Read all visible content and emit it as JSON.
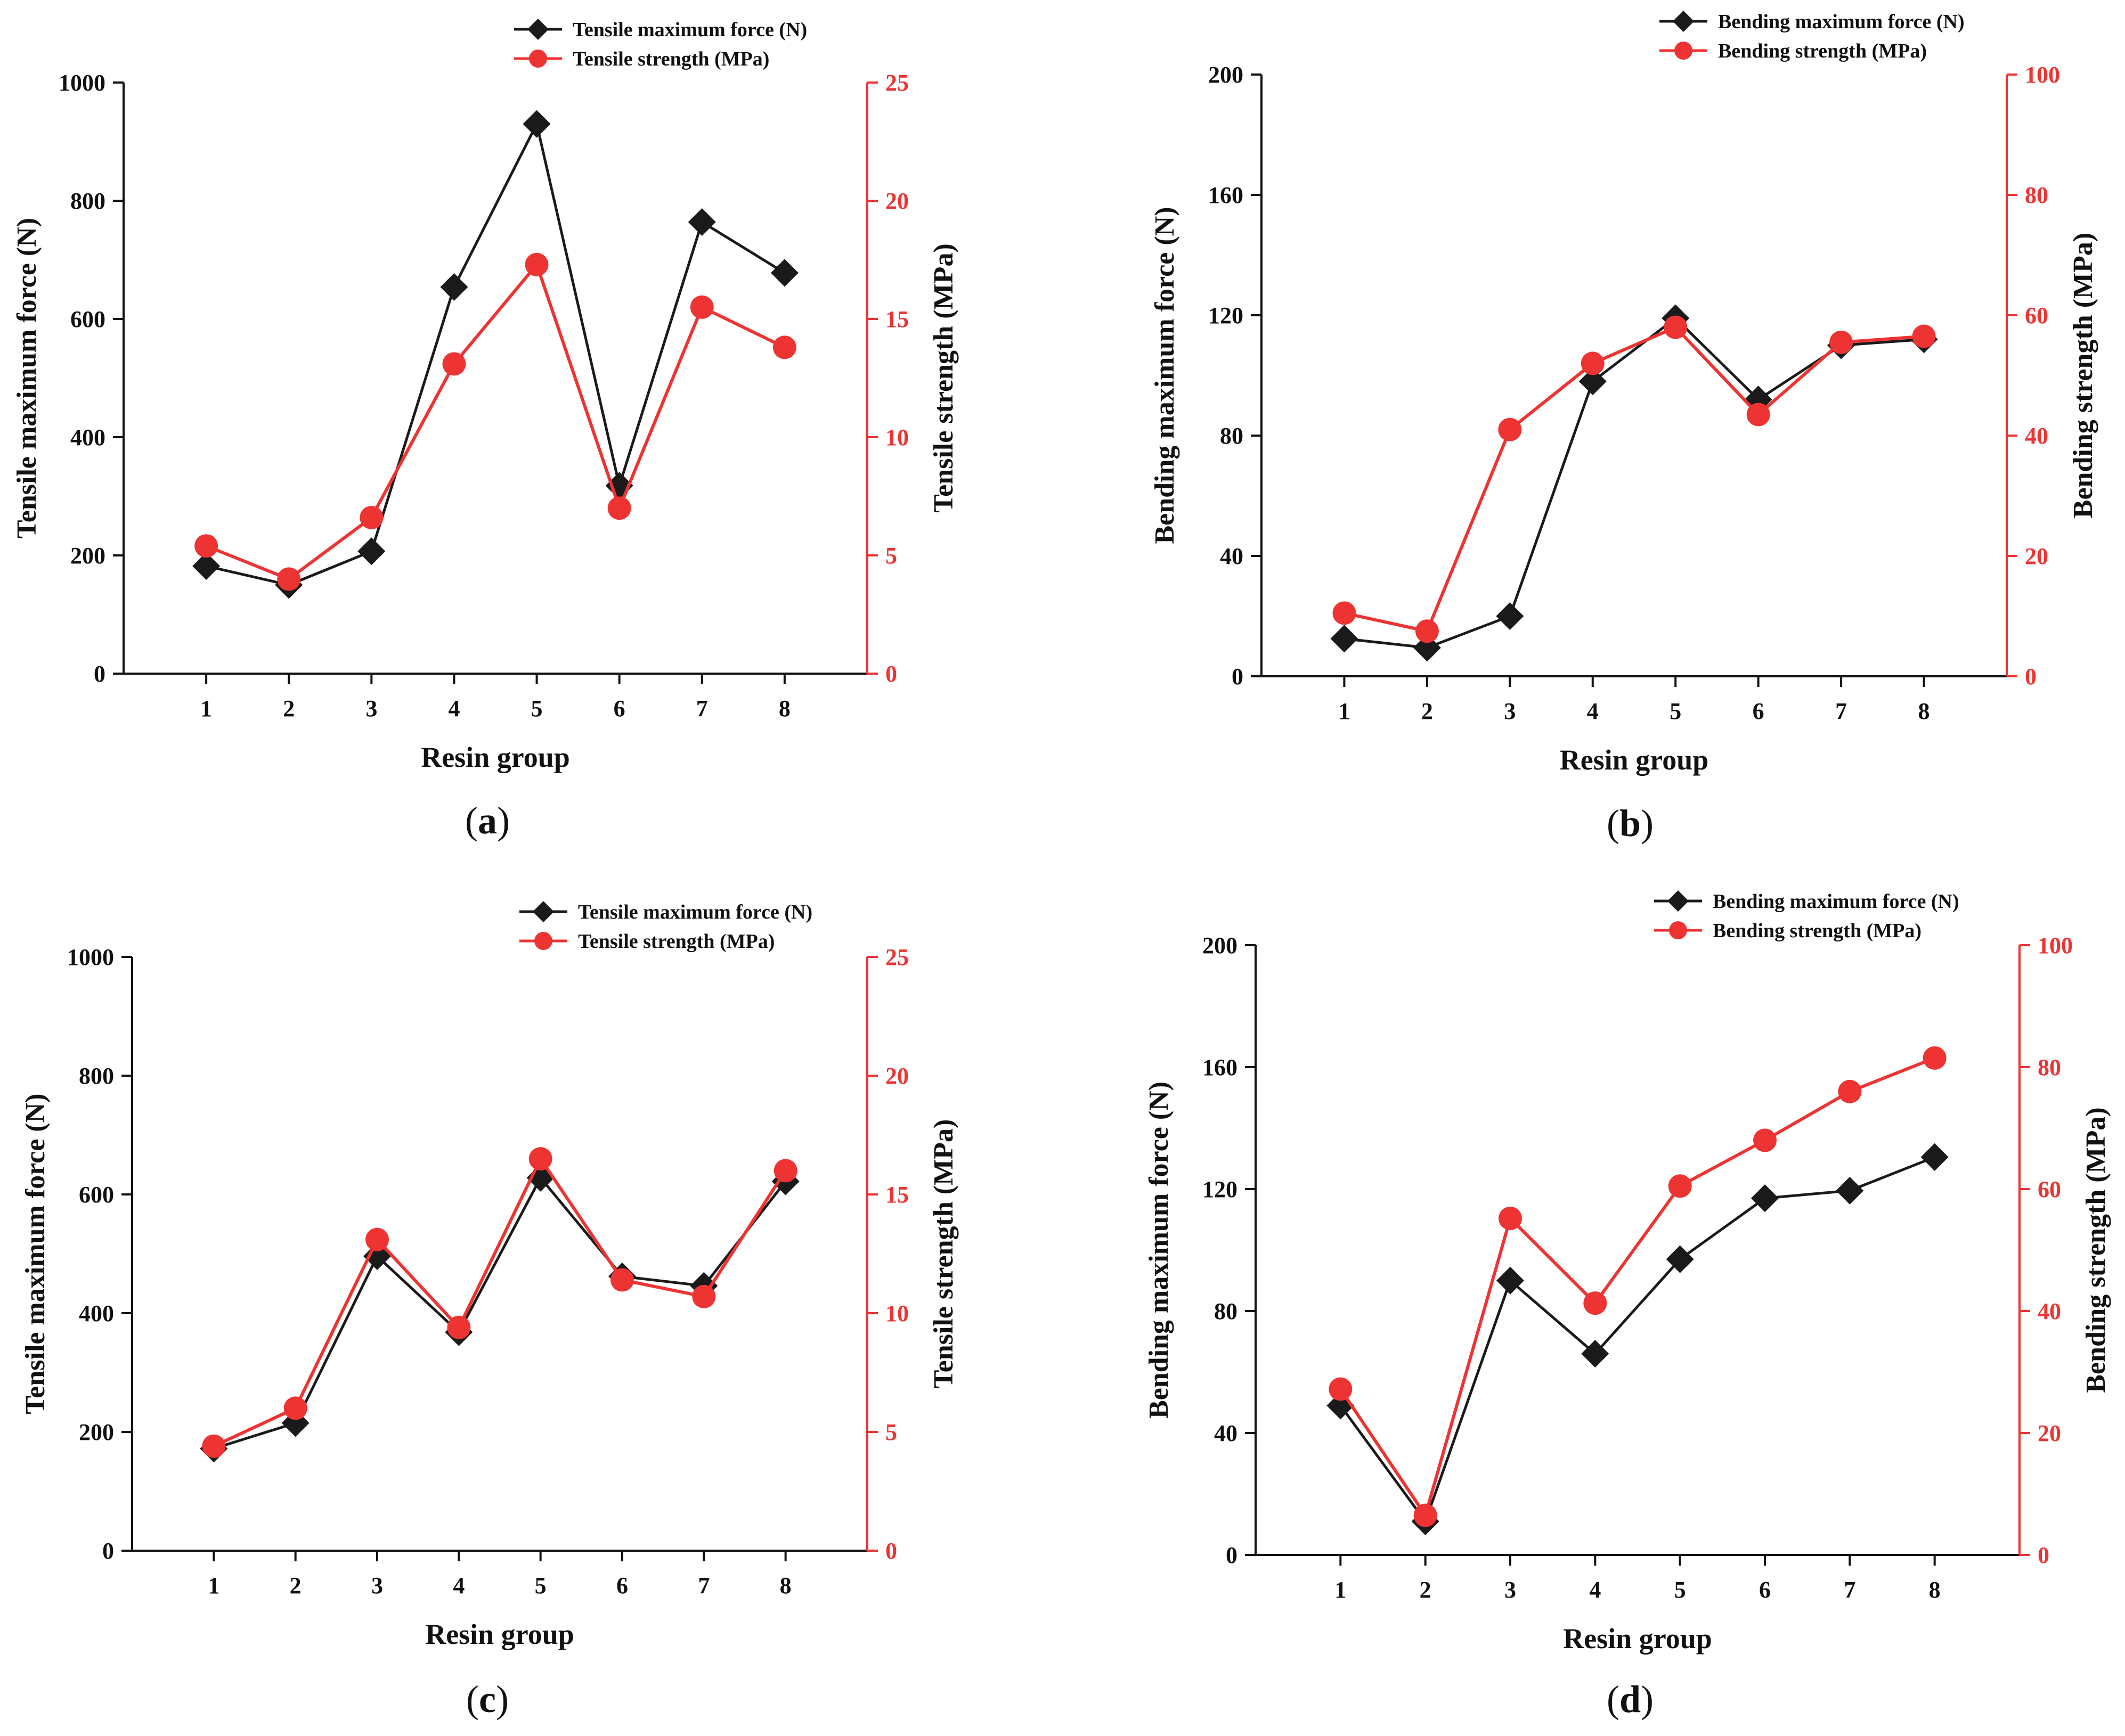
{
  "figure": {
    "colors": {
      "black_series": "#1a1a1a",
      "red_series": "#ee3333",
      "axis_black": "#111111",
      "axis_red": "#ee3333"
    }
  },
  "chart_data": [
    {
      "id": "a",
      "panel_label": "a",
      "type": "line",
      "title": "",
      "xlabel": "Resin group",
      "categories": [
        "1",
        "2",
        "3",
        "4",
        "5",
        "6",
        "7",
        "8"
      ],
      "xlim": [
        0,
        9
      ],
      "y_left": {
        "label": "Tensile maximum force (N)",
        "lim": [
          0,
          1000
        ],
        "ticks": [
          "0",
          "200",
          "400",
          "600",
          "800",
          "1000"
        ]
      },
      "y_right": {
        "label": "Tensile strength (MPa)",
        "lim": [
          0,
          25
        ],
        "ticks": [
          "0",
          "5",
          "10",
          "15",
          "20",
          "25"
        ]
      },
      "legend_position": "top-center",
      "series": [
        {
          "name": "Tensile maximum force (N)",
          "axis": "left",
          "marker": "diamond",
          "color": "#1a1a1a",
          "values": [
            182,
            150,
            207,
            654,
            930,
            318,
            764,
            678
          ]
        },
        {
          "name": "Tensile strength (MPa)",
          "axis": "right",
          "marker": "circle",
          "color": "#ee3333",
          "values": [
            5.4,
            4.0,
            6.6,
            13.1,
            17.3,
            7.0,
            15.5,
            13.8
          ]
        }
      ]
    },
    {
      "id": "b",
      "panel_label": "b",
      "type": "line",
      "title": "",
      "xlabel": "Resin group",
      "categories": [
        "1",
        "2",
        "3",
        "4",
        "5",
        "6",
        "7",
        "8"
      ],
      "xlim": [
        0,
        9
      ],
      "y_left": {
        "label": "Bending maximum force (N)",
        "lim": [
          0,
          200
        ],
        "ticks": [
          "0",
          "40",
          "80",
          "120",
          "160",
          "200"
        ]
      },
      "y_right": {
        "label": "Bending strength (MPa)",
        "lim": [
          0,
          100
        ],
        "ticks": [
          "0",
          "20",
          "40",
          "60",
          "80",
          "100"
        ]
      },
      "legend_position": "top-center",
      "series": [
        {
          "name": "Bending maximum force (N)",
          "axis": "left",
          "marker": "diamond",
          "color": "#1a1a1a",
          "values": [
            12.5,
            9.5,
            20,
            98,
            119,
            92,
            110,
            112
          ]
        },
        {
          "name": "Bending strength (MPa)",
          "axis": "right",
          "marker": "circle",
          "color": "#ee3333",
          "values": [
            10.5,
            7.5,
            41,
            52,
            58,
            43.5,
            55.5,
            56.5
          ]
        }
      ]
    },
    {
      "id": "c",
      "panel_label": "c",
      "type": "line",
      "title": "",
      "xlabel": "Resin group",
      "categories": [
        "1",
        "2",
        "3",
        "4",
        "5",
        "6",
        "7",
        "8"
      ],
      "xlim": [
        0,
        9
      ],
      "y_left": {
        "label": "Tensile maximum force (N)",
        "lim": [
          0,
          1000
        ],
        "ticks": [
          "0",
          "200",
          "400",
          "600",
          "800",
          "1000"
        ]
      },
      "y_right": {
        "label": "Tensile strength (MPa)",
        "lim": [
          0,
          25
        ],
        "ticks": [
          "0",
          "5",
          "10",
          "15",
          "20",
          "25"
        ]
      },
      "legend_position": "top-center",
      "series": [
        {
          "name": "Tensile maximum force (N)",
          "axis": "left",
          "marker": "diamond",
          "color": "#1a1a1a",
          "values": [
            172,
            215,
            496,
            368,
            628,
            462,
            446,
            622
          ]
        },
        {
          "name": "Tensile strength (MPa)",
          "axis": "right",
          "marker": "circle",
          "color": "#ee3333",
          "values": [
            4.4,
            6.0,
            13.1,
            9.4,
            16.5,
            11.4,
            10.7,
            16.0
          ]
        }
      ]
    },
    {
      "id": "d",
      "panel_label": "d",
      "type": "line",
      "title": "",
      "xlabel": "Resin group",
      "categories": [
        "1",
        "2",
        "3",
        "4",
        "5",
        "6",
        "7",
        "8"
      ],
      "xlim": [
        0,
        9
      ],
      "y_left": {
        "label": "Bending maximum force (N)",
        "lim": [
          0,
          200
        ],
        "ticks": [
          "0",
          "40",
          "80",
          "120",
          "160",
          "200"
        ]
      },
      "y_right": {
        "label": "Bending strength (MPa)",
        "lim": [
          0,
          100
        ],
        "ticks": [
          "0",
          "20",
          "40",
          "60",
          "80",
          "100"
        ]
      },
      "legend_position": "top-center",
      "series": [
        {
          "name": "Bending maximum force (N)",
          "axis": "left",
          "marker": "diamond",
          "color": "#1a1a1a",
          "values": [
            49,
            11,
            90,
            66,
            97,
            117,
            119.5,
            130.5
          ]
        },
        {
          "name": "Bending strength (MPa)",
          "axis": "right",
          "marker": "circle",
          "color": "#ee3333",
          "values": [
            27.2,
            6.5,
            55.2,
            41.3,
            60.5,
            68,
            76,
            81.5
          ]
        }
      ]
    }
  ]
}
